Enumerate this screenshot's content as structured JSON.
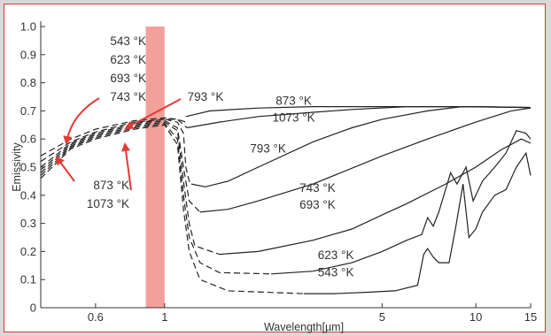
{
  "chart_data": {
    "type": "line",
    "xlabel": "Wavelength[µm]",
    "ylabel": "Emissivity",
    "x_scale": "log",
    "xlim": [
      0.4,
      15
    ],
    "ylim": [
      0,
      1.0
    ],
    "x_ticks": [
      "0.6",
      "1",
      "5",
      "10",
      "15"
    ],
    "y_ticks": [
      "0",
      "0.1",
      "0.2",
      "0.3",
      "0.4",
      "0.5",
      "0.6",
      "0.7",
      "0.8",
      "0.9",
      "1.0"
    ],
    "highlight_band": {
      "x_range": [
        0.87,
        1.0
      ],
      "color": "#f4a09a"
    },
    "colors": {
      "frame": "#d83a2e",
      "arrow": "#e53a35",
      "curve": "#222222"
    },
    "series": [
      {
        "name": "873 °K",
        "solid": [
          [
            1.17,
            0.68
          ],
          [
            1.4,
            0.7
          ],
          [
            2,
            0.71
          ],
          [
            3,
            0.715
          ],
          [
            5,
            0.715
          ],
          [
            10,
            0.715
          ],
          [
            15,
            0.712
          ]
        ],
        "dashed": [
          [
            0.4,
            0.54
          ],
          [
            0.5,
            0.6
          ],
          [
            0.6,
            0.635
          ],
          [
            0.8,
            0.665
          ],
          [
            1.0,
            0.675
          ],
          [
            1.1,
            0.67
          ],
          [
            1.17,
            0.66
          ]
        ]
      },
      {
        "name": "1073 °K",
        "solid": [
          [
            1.18,
            0.64
          ],
          [
            1.5,
            0.66
          ],
          [
            2,
            0.68
          ],
          [
            3,
            0.695
          ],
          [
            4,
            0.705
          ],
          [
            6,
            0.715
          ],
          [
            10,
            0.715
          ],
          [
            15,
            0.712
          ]
        ],
        "dashed": [
          [
            0.4,
            0.52
          ],
          [
            0.5,
            0.59
          ],
          [
            0.6,
            0.625
          ],
          [
            0.8,
            0.66
          ],
          [
            1.0,
            0.67
          ],
          [
            1.1,
            0.67
          ],
          [
            1.18,
            0.64
          ]
        ]
      },
      {
        "name": "793 °K",
        "solid": [
          [
            1.22,
            0.44
          ],
          [
            1.35,
            0.43
          ],
          [
            1.6,
            0.45
          ],
          [
            2,
            0.5
          ],
          [
            3,
            0.59
          ],
          [
            4,
            0.64
          ],
          [
            5,
            0.67
          ],
          [
            7,
            0.7
          ],
          [
            9,
            0.715
          ],
          [
            15,
            0.712
          ]
        ],
        "dashed": [
          [
            0.4,
            0.5
          ],
          [
            0.5,
            0.585
          ],
          [
            0.6,
            0.62
          ],
          [
            0.8,
            0.655
          ],
          [
            1.0,
            0.67
          ],
          [
            1.1,
            0.66
          ],
          [
            1.15,
            0.62
          ],
          [
            1.17,
            0.5
          ],
          [
            1.2,
            0.45
          ],
          [
            1.22,
            0.44
          ]
        ]
      },
      {
        "name": "743 °K",
        "solid": [
          [
            1.3,
            0.34
          ],
          [
            1.6,
            0.35
          ],
          [
            2,
            0.38
          ],
          [
            3,
            0.44
          ],
          [
            5,
            0.54
          ],
          [
            7,
            0.6
          ],
          [
            10,
            0.66
          ],
          [
            13,
            0.7
          ],
          [
            15,
            0.71
          ]
        ],
        "dashed": [
          [
            0.4,
            0.49
          ],
          [
            0.5,
            0.58
          ],
          [
            0.6,
            0.615
          ],
          [
            0.8,
            0.65
          ],
          [
            1.0,
            0.665
          ],
          [
            1.1,
            0.64
          ],
          [
            1.15,
            0.5
          ],
          [
            1.2,
            0.38
          ],
          [
            1.3,
            0.34
          ]
        ]
      },
      {
        "name": "693 °K",
        "solid": [
          [
            1.5,
            0.19
          ],
          [
            2,
            0.2
          ],
          [
            3,
            0.24
          ],
          [
            4,
            0.28
          ],
          [
            5,
            0.33
          ],
          [
            6,
            0.37
          ],
          [
            8,
            0.44
          ],
          [
            10,
            0.5
          ],
          [
            12,
            0.56
          ],
          [
            14,
            0.6
          ],
          [
            15,
            0.585
          ]
        ],
        "dashed": [
          [
            0.4,
            0.48
          ],
          [
            0.5,
            0.575
          ],
          [
            0.6,
            0.61
          ],
          [
            0.8,
            0.645
          ],
          [
            1.0,
            0.66
          ],
          [
            1.1,
            0.63
          ],
          [
            1.15,
            0.45
          ],
          [
            1.2,
            0.3
          ],
          [
            1.25,
            0.22
          ],
          [
            1.5,
            0.19
          ]
        ]
      },
      {
        "name": "623 °K",
        "solid": [
          [
            2.2,
            0.12
          ],
          [
            3,
            0.13
          ],
          [
            4,
            0.16
          ],
          [
            5,
            0.2
          ],
          [
            6,
            0.24
          ],
          [
            6.7,
            0.26
          ],
          [
            7,
            0.32
          ],
          [
            7.3,
            0.29
          ],
          [
            7.6,
            0.34
          ],
          [
            8.3,
            0.48
          ],
          [
            8.7,
            0.44
          ],
          [
            9.3,
            0.5
          ],
          [
            9.8,
            0.38
          ],
          [
            10.5,
            0.45
          ],
          [
            11.5,
            0.5
          ],
          [
            12.5,
            0.55
          ],
          [
            13.5,
            0.63
          ],
          [
            14.5,
            0.62
          ],
          [
            15,
            0.6
          ]
        ],
        "dashed": [
          [
            0.4,
            0.47
          ],
          [
            0.5,
            0.57
          ],
          [
            0.6,
            0.605
          ],
          [
            0.8,
            0.64
          ],
          [
            1.0,
            0.655
          ],
          [
            1.1,
            0.6
          ],
          [
            1.15,
            0.4
          ],
          [
            1.2,
            0.25
          ],
          [
            1.3,
            0.16
          ],
          [
            1.5,
            0.125
          ],
          [
            2.2,
            0.12
          ]
        ]
      },
      {
        "name": "543 °K",
        "solid": [
          [
            2.8,
            0.05
          ],
          [
            3.5,
            0.05
          ],
          [
            4.5,
            0.055
          ],
          [
            5.5,
            0.06
          ],
          [
            6.5,
            0.08
          ],
          [
            6.8,
            0.19
          ],
          [
            7.0,
            0.21
          ],
          [
            7.3,
            0.18
          ],
          [
            7.6,
            0.16
          ],
          [
            8.2,
            0.16
          ],
          [
            8.6,
            0.28
          ],
          [
            9.1,
            0.44
          ],
          [
            9.5,
            0.25
          ],
          [
            10.0,
            0.28
          ],
          [
            10.5,
            0.34
          ],
          [
            11.5,
            0.4
          ],
          [
            12.5,
            0.42
          ],
          [
            13.5,
            0.5
          ],
          [
            14.5,
            0.55
          ],
          [
            15,
            0.47
          ]
        ],
        "dashed": [
          [
            0.4,
            0.46
          ],
          [
            0.5,
            0.565
          ],
          [
            0.6,
            0.6
          ],
          [
            0.8,
            0.635
          ],
          [
            1.0,
            0.65
          ],
          [
            1.1,
            0.58
          ],
          [
            1.15,
            0.35
          ],
          [
            1.2,
            0.2
          ],
          [
            1.3,
            0.1
          ],
          [
            1.6,
            0.06
          ],
          [
            2.8,
            0.05
          ]
        ]
      }
    ],
    "annotations": {
      "group_top": [
        "543 °K",
        "623 °K",
        "693 °K",
        "743 °K"
      ],
      "group_mid": "793 °K",
      "group_bottom": [
        "873 °K",
        "1073 °K"
      ],
      "curve_labels": [
        {
          "text": "873 °K",
          "x": 2.6,
          "y": 0.735
        },
        {
          "text": "1073 °K",
          "x": 2.6,
          "y": 0.675
        },
        {
          "text": "793 °K",
          "x": 2.15,
          "y": 0.565
        },
        {
          "text": "743 °K",
          "x": 3.1,
          "y": 0.425
        },
        {
          "text": "693 °K",
          "x": 3.1,
          "y": 0.365
        },
        {
          "text": "623 °K",
          "x": 3.55,
          "y": 0.185
        },
        {
          "text": "543 °K",
          "x": 3.55,
          "y": 0.125
        }
      ]
    }
  }
}
